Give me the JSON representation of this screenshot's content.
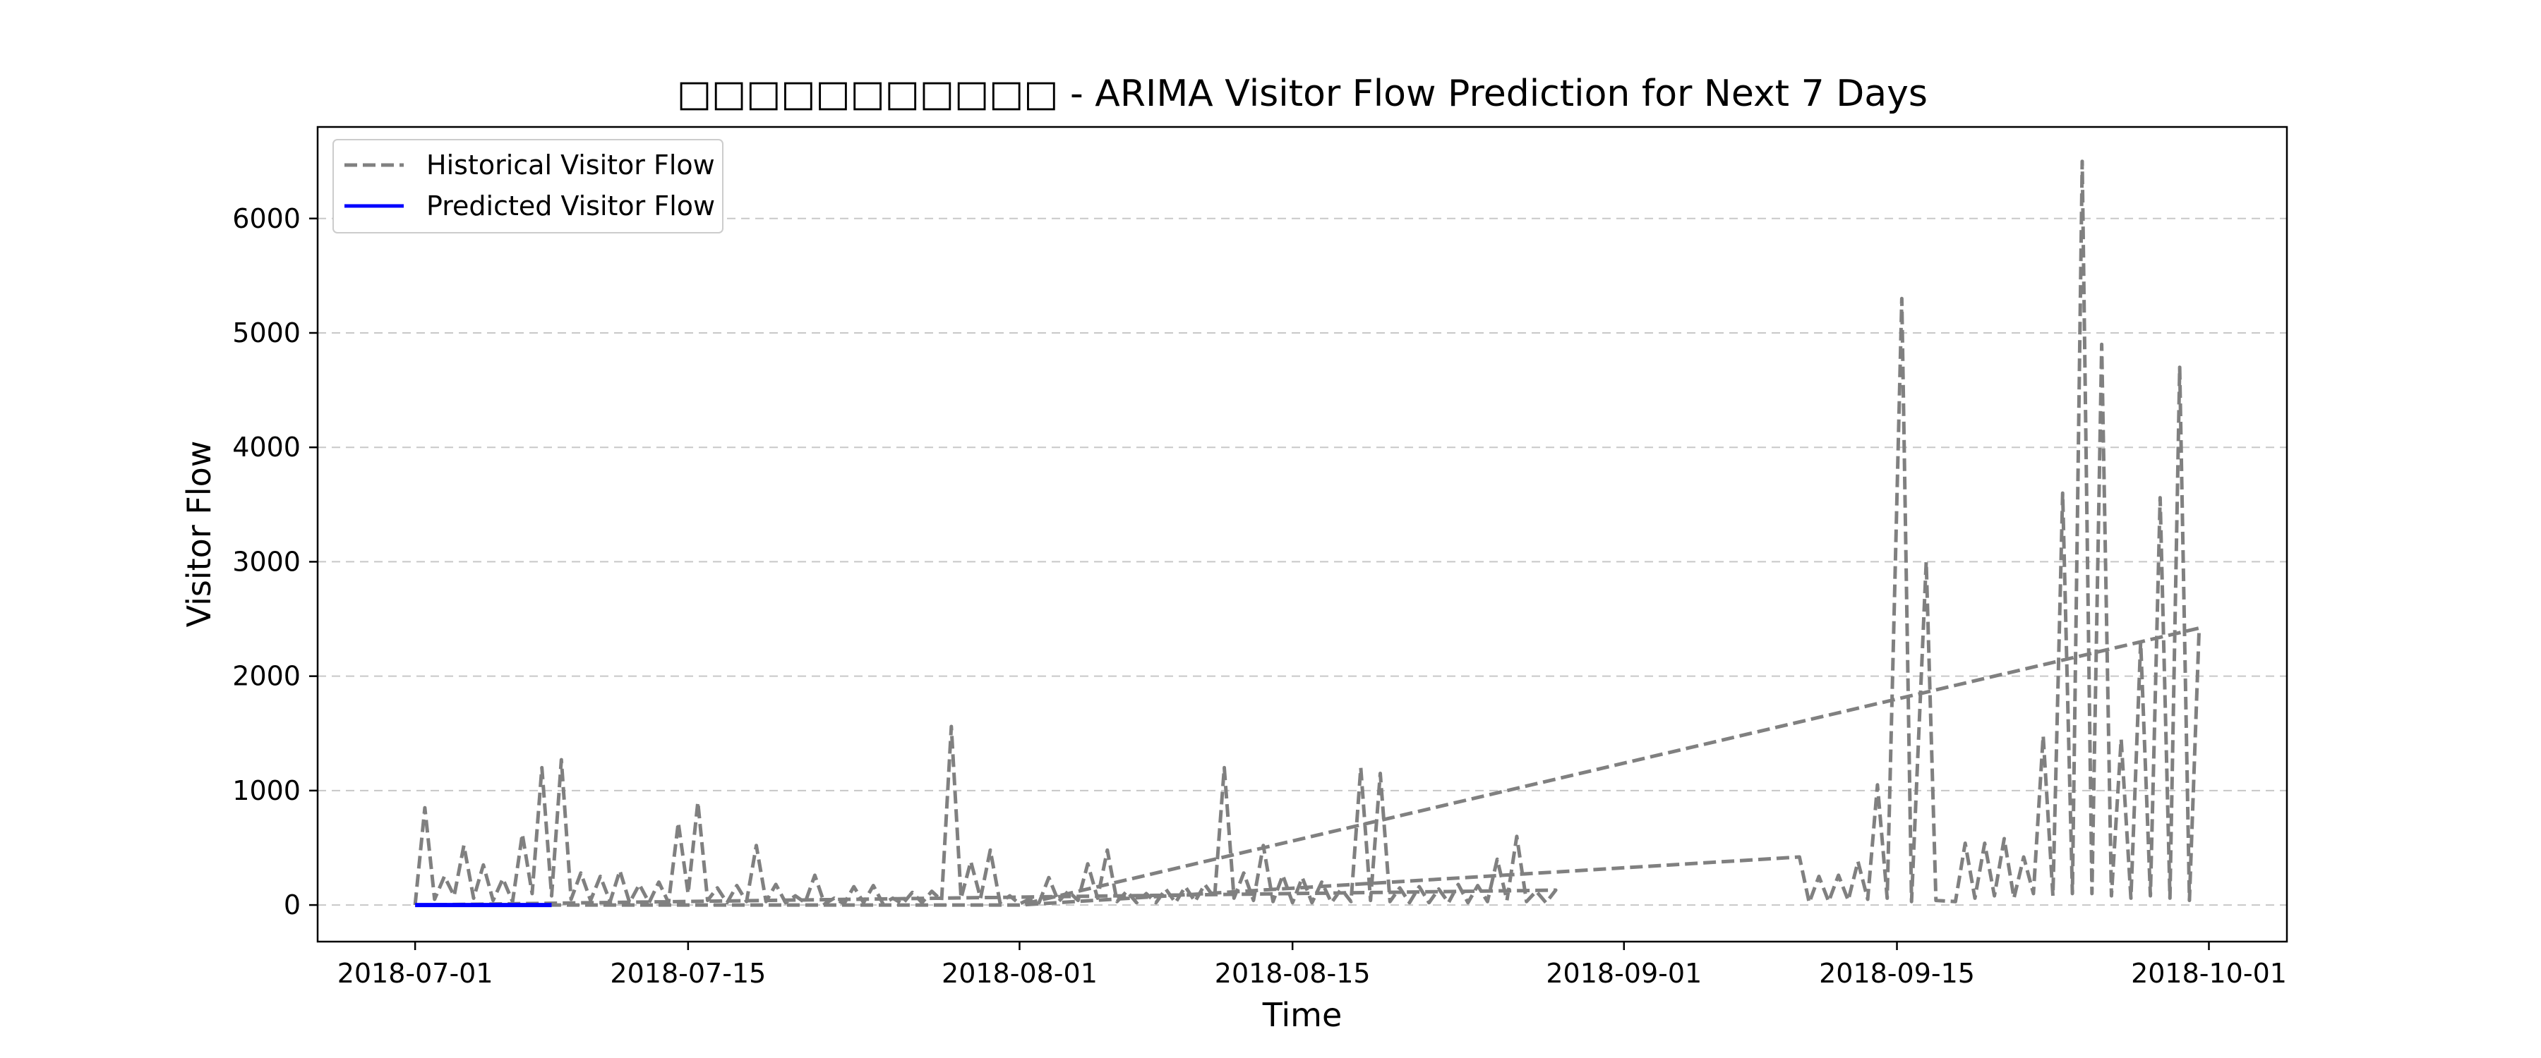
{
  "chart_data": {
    "type": "line",
    "title": "□□□□□□□□□□□ - ARIMA Visitor Flow Prediction for Next 7 Days",
    "xlabel": "Time",
    "ylabel": "Visitor Flow",
    "x_range": [
      "2018-06-26",
      "2018-10-05"
    ],
    "ylim": [
      -320,
      6800
    ],
    "grid": "horizontal dashed",
    "legend_position": "top-left",
    "x_ticks": [
      "2018-07-01",
      "2018-07-15",
      "2018-08-01",
      "2018-08-15",
      "2018-09-01",
      "2018-09-15",
      "2018-10-01"
    ],
    "y_ticks": [
      0,
      1000,
      2000,
      3000,
      4000,
      5000,
      6000
    ],
    "series": [
      {
        "name": "Historical Visitor Flow",
        "style": "dashed",
        "color": "#808080",
        "points": [
          [
            "2018-07-01",
            0
          ],
          [
            "2018-07-01T12:00",
            850
          ],
          [
            "2018-07-02",
            50
          ],
          [
            "2018-07-02T12:00",
            250
          ],
          [
            "2018-07-03",
            80
          ],
          [
            "2018-07-03T06:00",
            300
          ],
          [
            "2018-07-03T12:00",
            520
          ],
          [
            "2018-07-04",
            60
          ],
          [
            "2018-07-04T12:00",
            350
          ],
          [
            "2018-07-05",
            40
          ],
          [
            "2018-07-05T12:00",
            230
          ],
          [
            "2018-07-06",
            30
          ],
          [
            "2018-07-06T12:00",
            620
          ],
          [
            "2018-07-07",
            100
          ],
          [
            "2018-07-07T12:00",
            1200
          ],
          [
            "2018-07-08",
            80
          ],
          [
            "2018-07-08T12:00",
            1270
          ],
          [
            "2018-07-09",
            50
          ],
          [
            "2018-07-09T12:00",
            280
          ],
          [
            "2018-07-10",
            40
          ],
          [
            "2018-07-10T12:00",
            250
          ],
          [
            "2018-07-11",
            30
          ],
          [
            "2018-07-11T12:00",
            300
          ],
          [
            "2018-07-12",
            20
          ],
          [
            "2018-07-12T12:00",
            180
          ],
          [
            "2018-07-13",
            20
          ],
          [
            "2018-07-13T12:00",
            200
          ],
          [
            "2018-07-14",
            20
          ],
          [
            "2018-07-14T12:00",
            720
          ],
          [
            "2018-07-15",
            100
          ],
          [
            "2018-07-15T12:00",
            900
          ],
          [
            "2018-07-16",
            40
          ],
          [
            "2018-07-16T12:00",
            150
          ],
          [
            "2018-07-17",
            20
          ],
          [
            "2018-07-17T12:00",
            170
          ],
          [
            "2018-07-18",
            30
          ],
          [
            "2018-07-18T12:00",
            520
          ],
          [
            "2018-07-19",
            30
          ],
          [
            "2018-07-19T12:00",
            180
          ],
          [
            "2018-07-20",
            20
          ],
          [
            "2018-07-20T12:00",
            80
          ],
          [
            "2018-07-21",
            20
          ],
          [
            "2018-07-21T12:00",
            260
          ],
          [
            "2018-07-22",
            10
          ],
          [
            "2018-07-22T12:00",
            60
          ],
          [
            "2018-07-23",
            10
          ],
          [
            "2018-07-23T12:00",
            160
          ],
          [
            "2018-07-24",
            20
          ],
          [
            "2018-07-24T12:00",
            170
          ],
          [
            "2018-07-25",
            10
          ],
          [
            "2018-07-25T12:00",
            60
          ],
          [
            "2018-07-26",
            10
          ],
          [
            "2018-07-26T12:00",
            110
          ],
          [
            "2018-07-27",
            20
          ],
          [
            "2018-07-27T12:00",
            120
          ],
          [
            "2018-07-28",
            40
          ],
          [
            "2018-07-28T12:00",
            1560
          ],
          [
            "2018-07-29",
            60
          ],
          [
            "2018-07-29T12:00",
            380
          ],
          [
            "2018-07-30",
            60
          ],
          [
            "2018-07-30T12:00",
            480
          ],
          [
            "2018-07-31",
            20
          ],
          [
            "2018-07-31T12:00",
            80
          ],
          [
            "2018-08-01",
            10
          ],
          [
            "2018-08-01T12:00",
            50
          ],
          [
            "2018-08-02",
            20
          ],
          [
            "2018-08-02T12:00",
            240
          ],
          [
            "2018-08-03",
            30
          ],
          [
            "2018-08-03T12:00",
            120
          ],
          [
            "2018-08-04",
            40
          ],
          [
            "2018-08-04T12:00",
            360
          ],
          [
            "2018-08-05",
            60
          ],
          [
            "2018-08-05T12:00",
            480
          ],
          [
            "2018-08-06",
            30
          ],
          [
            "2018-08-06T12:00",
            120
          ],
          [
            "2018-08-07",
            20
          ],
          [
            "2018-08-07T12:00",
            100
          ],
          [
            "2018-08-08",
            20
          ],
          [
            "2018-08-08T12:00",
            140
          ],
          [
            "2018-08-09",
            20
          ],
          [
            "2018-08-09T12:00",
            160
          ],
          [
            "2018-08-10",
            30
          ],
          [
            "2018-08-10T12:00",
            180
          ],
          [
            "2018-08-11",
            60
          ],
          [
            "2018-08-11T12:00",
            1200
          ],
          [
            "2018-08-12",
            60
          ],
          [
            "2018-08-12T12:00",
            280
          ],
          [
            "2018-08-13",
            40
          ],
          [
            "2018-08-13T12:00",
            520
          ],
          [
            "2018-08-14",
            30
          ],
          [
            "2018-08-14T12:00",
            260
          ],
          [
            "2018-08-15",
            20
          ],
          [
            "2018-08-15T12:00",
            240
          ],
          [
            "2018-08-16",
            20
          ],
          [
            "2018-08-16T12:00",
            200
          ],
          [
            "2018-08-17",
            20
          ],
          [
            "2018-08-17T12:00",
            140
          ],
          [
            "2018-08-18",
            30
          ],
          [
            "2018-08-18T12:00",
            1200
          ],
          [
            "2018-08-19",
            40
          ],
          [
            "2018-08-19T12:00",
            1150
          ],
          [
            "2018-08-20",
            30
          ],
          [
            "2018-08-20T12:00",
            150
          ],
          [
            "2018-08-21",
            20
          ],
          [
            "2018-08-21T12:00",
            160
          ],
          [
            "2018-08-22",
            20
          ],
          [
            "2018-08-22T12:00",
            140
          ],
          [
            "2018-08-23",
            20
          ],
          [
            "2018-08-23T12:00",
            180
          ],
          [
            "2018-08-24",
            20
          ],
          [
            "2018-08-24T12:00",
            170
          ],
          [
            "2018-08-25",
            30
          ],
          [
            "2018-08-25T12:00",
            400
          ],
          [
            "2018-08-26",
            40
          ],
          [
            "2018-08-26T12:00",
            600
          ],
          [
            "2018-08-27",
            30
          ],
          [
            "2018-08-27T12:00",
            120
          ],
          [
            "2018-08-28",
            20
          ],
          [
            "2018-08-28T12:00",
            130
          ],
          [
            "2018-07-01",
            0
          ],
          [
            "2018-07-08",
            0
          ],
          [
            "2018-08-01",
            0
          ],
          [
            "2018-09-10",
            420
          ],
          [
            "2018-09-10T12:00",
            20
          ],
          [
            "2018-09-11",
            250
          ],
          [
            "2018-09-11T12:00",
            30
          ],
          [
            "2018-09-12",
            260
          ],
          [
            "2018-09-12T12:00",
            40
          ],
          [
            "2018-09-13",
            380
          ],
          [
            "2018-09-13T12:00",
            50
          ],
          [
            "2018-09-14",
            1050
          ],
          [
            "2018-09-14T12:00",
            60
          ],
          [
            "2018-09-15T06:00",
            5300
          ],
          [
            "2018-09-15T18:00",
            30
          ],
          [
            "2018-09-16T12:00",
            3000
          ],
          [
            "2018-09-17",
            40
          ],
          [
            "2018-09-18",
            30
          ],
          [
            "2018-09-18T12:00",
            540
          ],
          [
            "2018-09-19",
            60
          ],
          [
            "2018-09-19T12:00",
            540
          ],
          [
            "2018-09-20",
            80
          ],
          [
            "2018-09-20T12:00",
            580
          ],
          [
            "2018-09-21",
            60
          ],
          [
            "2018-09-21T12:00",
            420
          ],
          [
            "2018-09-22",
            100
          ],
          [
            "2018-09-22T12:00",
            1480
          ],
          [
            "2018-09-23",
            80
          ],
          [
            "2018-09-23T12:00",
            3600
          ],
          [
            "2018-09-24",
            100
          ],
          [
            "2018-09-24T12:00",
            6500
          ],
          [
            "2018-09-25",
            100
          ],
          [
            "2018-09-25T12:00",
            4900
          ],
          [
            "2018-09-26",
            80
          ],
          [
            "2018-09-26T12:00",
            1450
          ],
          [
            "2018-09-27",
            60
          ],
          [
            "2018-09-27T12:00",
            2300
          ],
          [
            "2018-09-28",
            80
          ],
          [
            "2018-09-28T12:00",
            3560
          ],
          [
            "2018-09-29",
            60
          ],
          [
            "2018-09-29T12:00",
            4700
          ],
          [
            "2018-09-30",
            40
          ],
          [
            "2018-09-30T12:00",
            2420
          ],
          [
            "2018-08-01",
            0
          ]
        ]
      },
      {
        "name": "Predicted Visitor Flow",
        "style": "solid",
        "color": "#0000ff",
        "points": [
          [
            "2018-07-01",
            0
          ],
          [
            "2018-07-08",
            0
          ]
        ]
      }
    ]
  }
}
